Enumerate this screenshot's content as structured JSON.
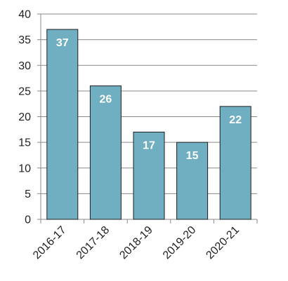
{
  "chart_data": {
    "type": "bar",
    "title": "",
    "xlabel": "",
    "ylabel": "",
    "categories": [
      "2016-17",
      "2017-18",
      "2018-19",
      "2019-20",
      "2020-21"
    ],
    "values": [
      37,
      26,
      17,
      15,
      22
    ],
    "data_labels": [
      "37",
      "26",
      "17",
      "15",
      "22"
    ],
    "ylim": [
      0,
      40
    ],
    "yticks": [
      0,
      5,
      10,
      15,
      20,
      25,
      30,
      35,
      40
    ],
    "ytick_labels": [
      "0",
      "5",
      "10",
      "15",
      "20",
      "25",
      "30",
      "35",
      "40"
    ],
    "grid": true,
    "legend": "none",
    "colors": {
      "bar_fill": "#6FAFC1",
      "bar_stroke": "#1F1F1F",
      "grid": "#8A8A8A",
      "axis": "#8A8A8A",
      "label_text": "#FFFFFF",
      "tick_text": "#222222"
    }
  }
}
